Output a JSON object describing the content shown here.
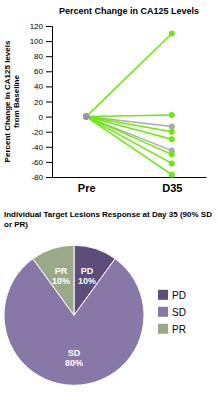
{
  "chart_data": [
    {
      "type": "line",
      "title": "Percent Change in CA125 Levels",
      "ylabel": "Percent Change in CA125 levels\nfrom Baseline",
      "categories": [
        "Pre",
        "D35"
      ],
      "series": [
        {
          "color": "#66ee00",
          "colors": [
            "#999999",
            "#66ee00"
          ],
          "values": [
            0,
            110
          ]
        },
        {
          "color": "#66ee00",
          "colors": [
            "#999999",
            "#66ee00"
          ],
          "values": [
            0,
            2
          ]
        },
        {
          "color": "#aaaaaa",
          "colors": [
            "#999999",
            "#aaaaaa"
          ],
          "values": [
            0,
            -13
          ]
        },
        {
          "color": "#66ee00",
          "colors": [
            "#999999",
            "#66ee00"
          ],
          "values": [
            0,
            -20
          ]
        },
        {
          "color": "#66ee00",
          "colors": [
            "#999999",
            "#66ee00"
          ],
          "values": [
            0,
            -30
          ]
        },
        {
          "color": "#aaaaaa",
          "colors": [
            "#999999",
            "#aaaaaa"
          ],
          "values": [
            0,
            -45
          ]
        },
        {
          "color": "#66ee00",
          "colors": [
            "#999999",
            "#66ee00"
          ],
          "values": [
            0,
            -50
          ]
        },
        {
          "color": "#66ee00",
          "colors": [
            "#999999",
            "#66ee00"
          ],
          "values": [
            0,
            -62
          ]
        },
        {
          "color": "#66ee00",
          "colors": [
            "#999999",
            "#66ee00"
          ],
          "values": [
            0,
            -77
          ]
        }
      ],
      "marker": "circle",
      "ylim": [
        -80,
        120
      ],
      "yticks": [
        -80,
        -60,
        -40,
        -20,
        0,
        20,
        40,
        60,
        80,
        100,
        120
      ],
      "grid": false
    },
    {
      "type": "pie",
      "title": "Individual Target Lesions Response at Day 35 (90% SD or PR)",
      "categories": [
        "PD",
        "SD",
        "PR"
      ],
      "values": [
        10,
        80,
        10
      ],
      "value_labels": [
        "10%",
        "80%",
        "10%"
      ],
      "colors": [
        "#5c4d7a",
        "#8878a8",
        "#9aaa88"
      ],
      "data_labels": true,
      "legend": "right"
    }
  ]
}
